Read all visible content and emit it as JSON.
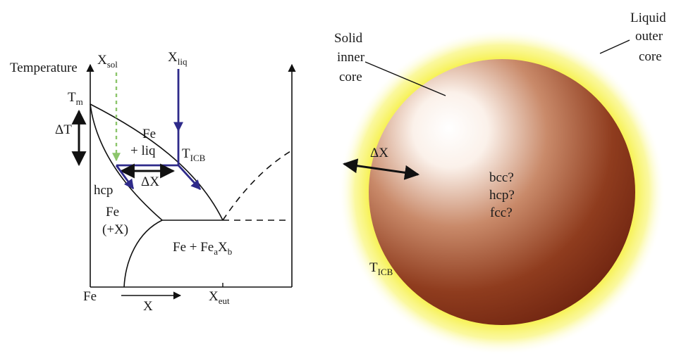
{
  "phase_diagram": {
    "y_axis_label": "Temperature",
    "x_axis_left_label": "Fe",
    "x_axis_arrow_label": "X",
    "x_eut": {
      "base": "X",
      "sub": "eut"
    },
    "tm": {
      "base": "T",
      "sub": "m"
    },
    "delta_t": "ΔT",
    "x_sol": {
      "base": "X",
      "sub": "sol"
    },
    "x_liq": {
      "base": "X",
      "sub": "liq"
    },
    "fe_liq_line1": "Fe",
    "fe_liq_line2": "+ liq",
    "t_icb": {
      "base": "T",
      "sub": "ICB"
    },
    "delta_x": "ΔX",
    "hcp": "hcp",
    "fe_x_line1": "Fe",
    "fe_x_line2": "(+X)",
    "eutectic_region": {
      "base": "Fe + Fe",
      "sub_a": "a",
      "mid": "X",
      "sub_b": "b"
    }
  },
  "core_sphere": {
    "solid_inner_core": [
      "Solid",
      "inner",
      "core"
    ],
    "liquid_outer_core": [
      "Liquid",
      "outer",
      "core"
    ],
    "delta_x": "ΔX",
    "phases": [
      "bcc?",
      "hcp?",
      "fcc?"
    ],
    "t_icb": {
      "base": "T",
      "sub": "ICB"
    }
  },
  "colors": {
    "solidus_arrow": "#8cc56b",
    "liquidus_arrow": "#2e2a8a",
    "halo": "#f7f25a",
    "core_dark": "#7a2a12",
    "core_light": "#ffffff"
  }
}
